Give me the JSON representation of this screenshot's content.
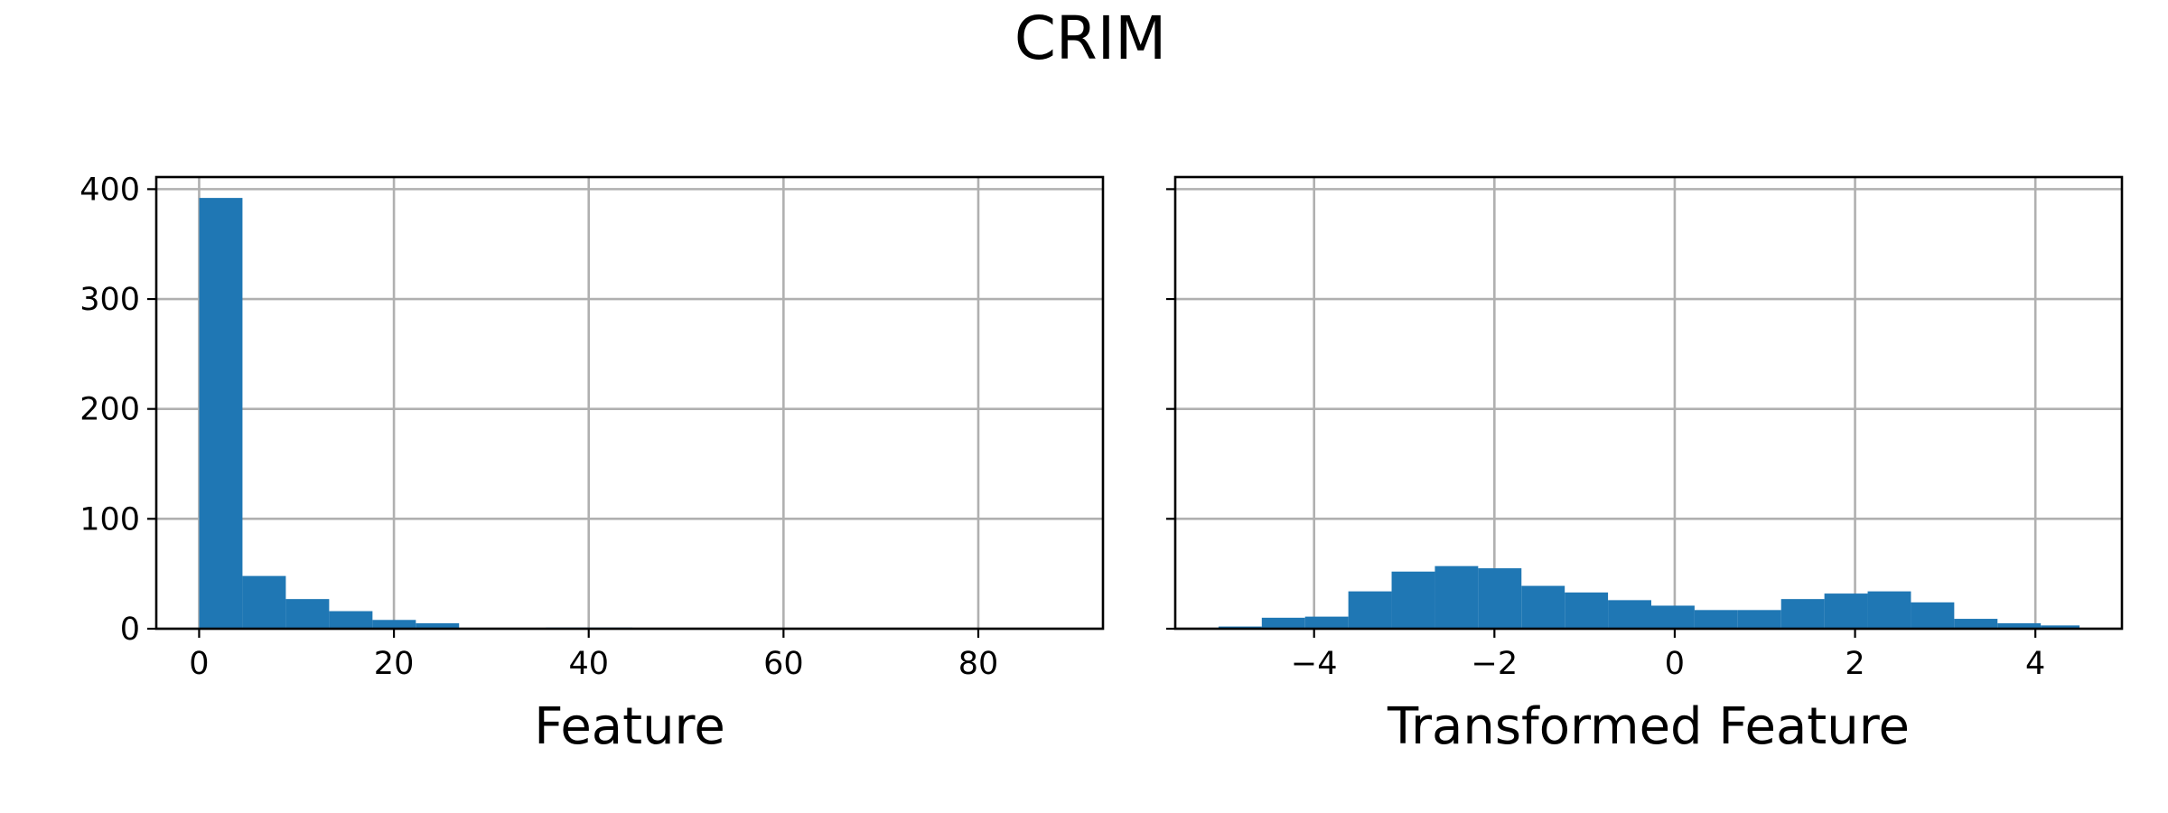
{
  "figure": {
    "title": "CRIM"
  },
  "chart_data": [
    {
      "type": "bar",
      "title": "",
      "xlabel": "Feature",
      "ylabel": "",
      "xlim": [
        -4.4,
        92.8
      ],
      "ylim": [
        0,
        411
      ],
      "grid": true,
      "xticks": [
        0,
        20,
        40,
        60,
        80
      ],
      "xtick_labels": [
        "0",
        "20",
        "40",
        "60",
        "80"
      ],
      "yticks": [
        0,
        100,
        200,
        300,
        400
      ],
      "ytick_labels": [
        "0",
        "100",
        "200",
        "300",
        "400"
      ],
      "bar_color": "#1f77b4",
      "bin_edges": [
        0.0063,
        4.45,
        8.9,
        13.35,
        17.8,
        22.25,
        26.69,
        31.14,
        35.59,
        40.04,
        44.49,
        48.94,
        53.38,
        57.83,
        62.28,
        66.73,
        71.18,
        75.62,
        80.07,
        84.52,
        88.97
      ],
      "counts": [
        392,
        48,
        27,
        16,
        8,
        5,
        0,
        0,
        1,
        1,
        0,
        0,
        0,
        0,
        0,
        0,
        0,
        0,
        0,
        0
      ]
    },
    {
      "type": "bar",
      "title": "",
      "xlabel": "Transformed Feature",
      "ylabel": "",
      "xlim": [
        -5.54,
        4.96
      ],
      "ylim": [
        0,
        411
      ],
      "grid": true,
      "xticks": [
        -4,
        -2,
        0,
        2,
        4
      ],
      "xtick_labels": [
        "−4",
        "−2",
        "0",
        "2",
        "4"
      ],
      "yticks": [
        0,
        100,
        200,
        300,
        400
      ],
      "ytick_labels": [],
      "bar_color": "#1f77b4",
      "bin_edges": [
        -5.06,
        -4.58,
        -4.1,
        -3.62,
        -3.14,
        -2.66,
        -2.18,
        -1.7,
        -1.22,
        -0.74,
        -0.26,
        0.22,
        0.7,
        1.18,
        1.66,
        2.14,
        2.62,
        3.1,
        3.58,
        4.06,
        4.49
      ],
      "counts": [
        2,
        10,
        11,
        34,
        52,
        57,
        55,
        39,
        33,
        26,
        21,
        17,
        17,
        27,
        32,
        34,
        24,
        9,
        5,
        3
      ]
    }
  ]
}
